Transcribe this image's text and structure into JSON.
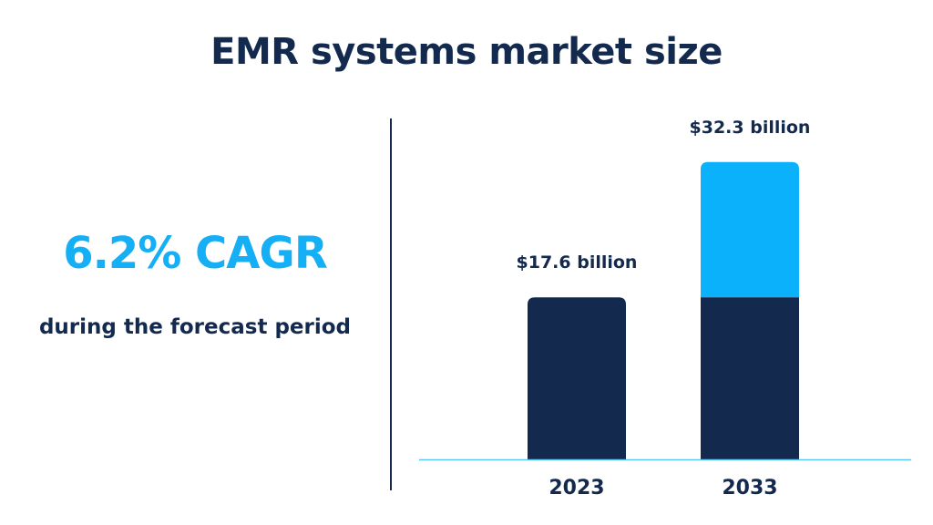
{
  "title": "EMR systems market size",
  "cagr": {
    "headline": "6.2% CAGR",
    "subtitle": "during the forecast period"
  },
  "colors": {
    "dark": "#132a4e",
    "accent": "#0bb2fb",
    "axis": "#5bc6f5"
  },
  "chart_data": {
    "type": "bar",
    "categories": [
      "2023",
      "2033"
    ],
    "values": [
      17.6,
      32.3
    ],
    "data_labels": [
      "$17.6 billion",
      "$32.3 billion"
    ],
    "base_value": 17.6,
    "ylim": [
      0,
      35
    ],
    "grid": false,
    "xlabel": "",
    "ylabel": ""
  }
}
